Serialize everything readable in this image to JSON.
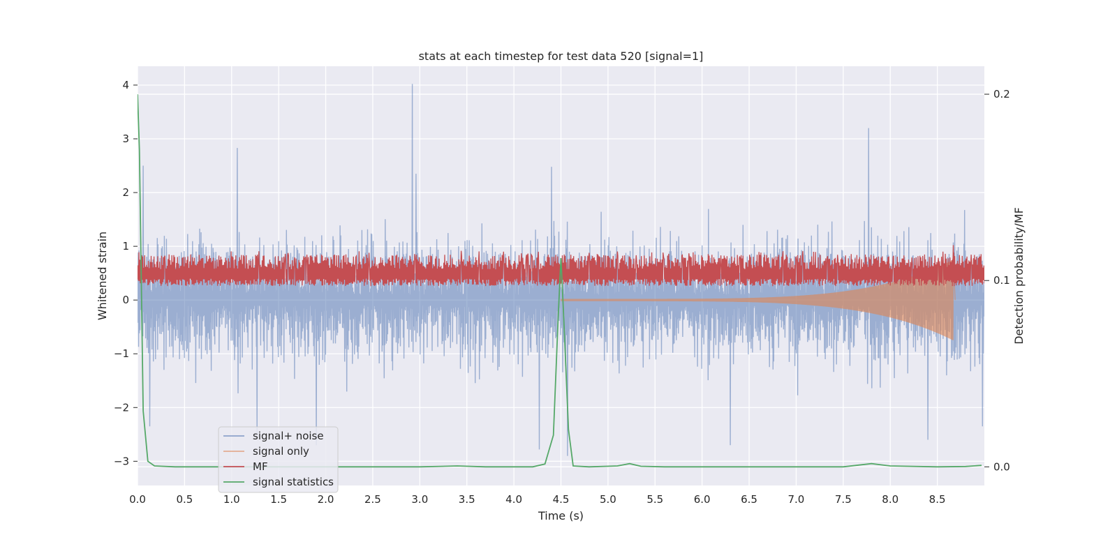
{
  "chart_data": {
    "type": "line",
    "title": "stats at each timestep for test data 520 [signal=1]",
    "xlabel": "Time (s)",
    "ylabel": "Whitened strain",
    "y2label": "Detection probability/MF",
    "xlim": [
      0.0,
      9.0
    ],
    "ylim": [
      -3.45,
      4.35
    ],
    "y2lim": [
      -0.01,
      0.215
    ],
    "xticks": [
      "0.0",
      "0.5",
      "1.0",
      "1.5",
      "2.0",
      "2.5",
      "3.0",
      "3.5",
      "4.0",
      "4.5",
      "5.0",
      "5.5",
      "6.0",
      "6.5",
      "7.0",
      "7.5",
      "8.0",
      "8.5"
    ],
    "xtick_values": [
      0.0,
      0.5,
      1.0,
      1.5,
      2.0,
      2.5,
      3.0,
      3.5,
      4.0,
      4.5,
      5.0,
      5.5,
      6.0,
      6.5,
      7.0,
      7.5,
      8.0,
      8.5
    ],
    "yticks": [
      "−3",
      "−2",
      "−1",
      "0",
      "1",
      "2",
      "3",
      "4"
    ],
    "ytick_values": [
      -3,
      -2,
      -1,
      0,
      1,
      2,
      3,
      4
    ],
    "y2ticks": [
      "0.0",
      "0.1",
      "0.2"
    ],
    "y2tick_values": [
      0.0,
      0.1,
      0.2
    ],
    "grid": true,
    "legend_position": "lower-left",
    "series": [
      {
        "name": "signal+ noise",
        "axis": "left",
        "color": "#4c72b0",
        "style": "noise, amplitude envelope about ±1.6 with spikes",
        "peaks": [
          {
            "x": 0.06,
            "y": 2.5
          },
          {
            "x": 0.13,
            "y": -2.35
          },
          {
            "x": 1.06,
            "y": 2.83
          },
          {
            "x": 1.27,
            "y": -2.5
          },
          {
            "x": 1.9,
            "y": -2.7
          },
          {
            "x": 2.92,
            "y": 4.02
          },
          {
            "x": 2.96,
            "y": 2.35
          },
          {
            "x": 4.27,
            "y": -2.78
          },
          {
            "x": 4.4,
            "y": 2.48
          },
          {
            "x": 4.57,
            "y": -2.9
          },
          {
            "x": 6.3,
            "y": -2.7
          },
          {
            "x": 7.77,
            "y": 3.2
          },
          {
            "x": 8.4,
            "y": -2.6
          },
          {
            "x": 8.98,
            "y": -2.35
          }
        ]
      },
      {
        "name": "signal only",
        "axis": "left",
        "color": "#dd8452",
        "chirp": {
          "t_start": 4.5,
          "t_merger": 8.67,
          "amp_start": 0.02,
          "amp_peak": 0.75
        }
      },
      {
        "name": "MF",
        "axis": "right",
        "color": "#c44e52",
        "style": "dense band between about 0.097 and 0.112 on the right axis, peak 0.119 at 8.67",
        "band": [
          0.097,
          0.112
        ],
        "peak": {
          "x": 8.67,
          "y": 0.119
        }
      },
      {
        "name": "signal statistics",
        "axis": "right",
        "color": "#55a868",
        "points": [
          [
            0.0,
            0.2
          ],
          [
            0.02,
            0.17
          ],
          [
            0.04,
            0.1
          ],
          [
            0.06,
            0.03
          ],
          [
            0.11,
            0.003
          ],
          [
            0.18,
            0.0005
          ],
          [
            0.4,
            0.0
          ],
          [
            1.0,
            0.0
          ],
          [
            2.0,
            0.0
          ],
          [
            3.0,
            0.0
          ],
          [
            3.4,
            0.0005
          ],
          [
            3.7,
            0.0
          ],
          [
            4.2,
            0.0
          ],
          [
            4.33,
            0.0015
          ],
          [
            4.42,
            0.017
          ],
          [
            4.47,
            0.08
          ],
          [
            4.5,
            0.112
          ],
          [
            4.53,
            0.08
          ],
          [
            4.58,
            0.02
          ],
          [
            4.63,
            0.0005
          ],
          [
            4.8,
            0.0
          ],
          [
            5.1,
            0.0005
          ],
          [
            5.23,
            0.0017
          ],
          [
            5.35,
            0.0003
          ],
          [
            5.6,
            0.0
          ],
          [
            6.5,
            0.0
          ],
          [
            7.5,
            0.0
          ],
          [
            7.8,
            0.0017
          ],
          [
            8.0,
            0.0005
          ],
          [
            8.5,
            0.0
          ],
          [
            8.8,
            0.0002
          ],
          [
            8.97,
            0.0008
          ]
        ]
      }
    ]
  }
}
